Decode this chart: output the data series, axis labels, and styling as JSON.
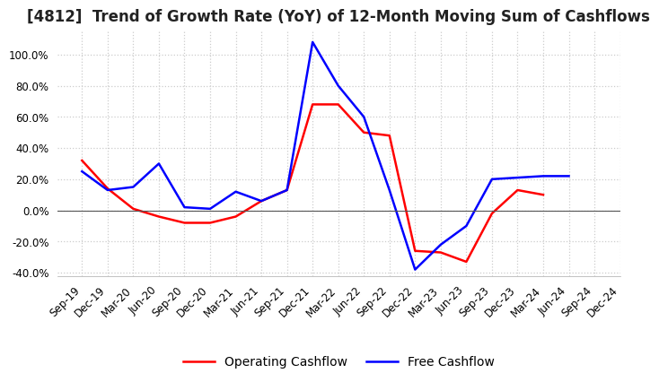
{
  "title": "[4812]  Trend of Growth Rate (YoY) of 12-Month Moving Sum of Cashflows",
  "ylim": [
    -0.42,
    1.15
  ],
  "yticks": [
    -0.4,
    -0.2,
    0.0,
    0.2,
    0.4,
    0.6,
    0.8,
    1.0
  ],
  "background_color": "#ffffff",
  "grid_color": "#cccccc",
  "x_labels": [
    "Sep-19",
    "Dec-19",
    "Mar-20",
    "Jun-20",
    "Sep-20",
    "Dec-20",
    "Mar-21",
    "Jun-21",
    "Sep-21",
    "Dec-21",
    "Mar-22",
    "Jun-22",
    "Sep-22",
    "Dec-22",
    "Mar-23",
    "Jun-23",
    "Sep-23",
    "Dec-23",
    "Mar-24",
    "Jun-24",
    "Sep-24",
    "Dec-24"
  ],
  "operating_cashflow": [
    0.32,
    0.14,
    0.01,
    -0.04,
    -0.08,
    -0.08,
    -0.04,
    0.06,
    0.13,
    0.68,
    0.68,
    0.5,
    0.48,
    -0.26,
    -0.27,
    -0.33,
    -0.02,
    0.13,
    0.1,
    null,
    null,
    null
  ],
  "free_cashflow": [
    0.25,
    0.13,
    0.15,
    0.3,
    0.02,
    0.01,
    0.12,
    0.06,
    0.13,
    1.08,
    0.8,
    0.6,
    0.13,
    -0.38,
    -0.22,
    -0.1,
    0.2,
    0.21,
    0.22,
    0.22,
    null,
    null
  ],
  "operating_color": "#ff0000",
  "free_color": "#0000ff",
  "legend_labels": [
    "Operating Cashflow",
    "Free Cashflow"
  ],
  "title_fontsize": 12,
  "tick_fontsize": 8.5,
  "legend_fontsize": 10
}
